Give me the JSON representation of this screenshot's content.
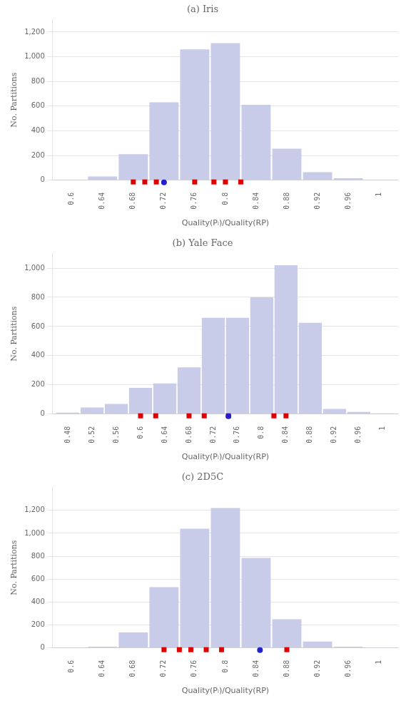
{
  "chart_data": [
    {
      "type": "bar",
      "title": "(a) Iris",
      "xlabel": "Quality(Pᵢ)/Quality(RP)",
      "ylabel": "No. Partitions",
      "x": [
        0.6,
        0.64,
        0.68,
        0.72,
        0.76,
        0.8,
        0.84,
        0.88,
        0.92,
        0.96,
        1.0
      ],
      "series": [
        {
          "type": "bar",
          "color": "#c8cce8",
          "values": [
            0,
            30,
            210,
            630,
            1060,
            1110,
            610,
            255,
            65,
            15,
            0
          ]
        },
        {
          "type": "scatter",
          "marker": "square",
          "color": "#dd0000",
          "x": [
            0.68,
            0.695,
            0.71,
            0.76,
            0.785,
            0.8,
            0.82
          ]
        },
        {
          "type": "scatter",
          "marker": "circle",
          "color": "#2222cc",
          "x": [
            0.72
          ]
        }
      ],
      "xlim": [
        0.575,
        1.025
      ],
      "xticks": [
        0.6,
        0.64,
        0.68,
        0.72,
        0.76,
        0.8,
        0.84,
        0.88,
        0.92,
        0.96,
        1
      ],
      "ylim": [
        0,
        1300
      ],
      "yticks": [
        0,
        200,
        400,
        600,
        800,
        {
          "value": 1000,
          "label": "1,000"
        },
        {
          "value": 1200,
          "label": "1,200"
        }
      ],
      "grid": true
    },
    {
      "type": "bar",
      "title": "(b) Yale Face",
      "xlabel": "Quality(Pᵢ)/Quality(RP)",
      "ylabel": "No. Partitions",
      "x": [
        0.48,
        0.52,
        0.56,
        0.6,
        0.64,
        0.68,
        0.72,
        0.76,
        0.8,
        0.84,
        0.88,
        0.92,
        0.96,
        1.0
      ],
      "series": [
        {
          "type": "bar",
          "color": "#c8cce8",
          "values": [
            10,
            45,
            70,
            180,
            210,
            320,
            660,
            660,
            800,
            1020,
            625,
            35,
            15,
            5
          ]
        },
        {
          "type": "scatter",
          "marker": "square",
          "color": "#dd0000",
          "x": [
            0.6,
            0.625,
            0.68,
            0.705,
            0.745,
            0.82,
            0.84
          ]
        },
        {
          "type": "scatter",
          "marker": "circle",
          "color": "#2222cc",
          "x": [
            0.745
          ]
        }
      ],
      "xlim": [
        0.455,
        1.025
      ],
      "xticks": [
        0.48,
        0.52,
        0.56,
        0.6,
        0.64,
        0.68,
        0.72,
        0.76,
        0.8,
        0.84,
        0.88,
        0.92,
        0.96,
        1
      ],
      "ylim": [
        0,
        1100
      ],
      "yticks": [
        0,
        200,
        400,
        600,
        800,
        {
          "value": 1000,
          "label": "1,000"
        }
      ],
      "grid": true
    },
    {
      "type": "bar",
      "title": "(c) 2D5C",
      "xlabel": "Quality(Pᵢ)/Quality(RP)",
      "ylabel": "No. Partitions",
      "x": [
        0.6,
        0.64,
        0.68,
        0.72,
        0.76,
        0.8,
        0.84,
        0.88,
        0.92,
        0.96,
        1.0
      ],
      "series": [
        {
          "type": "bar",
          "color": "#c8cce8",
          "values": [
            0,
            10,
            135,
            530,
            1040,
            1220,
            785,
            250,
            55,
            10,
            5
          ]
        },
        {
          "type": "scatter",
          "marker": "square",
          "color": "#dd0000",
          "x": [
            0.72,
            0.74,
            0.755,
            0.775,
            0.795,
            0.88
          ]
        },
        {
          "type": "scatter",
          "marker": "circle",
          "color": "#2222cc",
          "x": [
            0.845
          ]
        }
      ],
      "xlim": [
        0.575,
        1.025
      ],
      "xticks": [
        0.6,
        0.64,
        0.68,
        0.72,
        0.76,
        0.8,
        0.84,
        0.88,
        0.92,
        0.96,
        1
      ],
      "ylim": [
        0,
        1400
      ],
      "yticks": [
        0,
        200,
        400,
        600,
        800,
        {
          "value": 1000,
          "label": "1,000"
        },
        {
          "value": 1200,
          "label": "1,200"
        }
      ],
      "grid": true
    }
  ]
}
